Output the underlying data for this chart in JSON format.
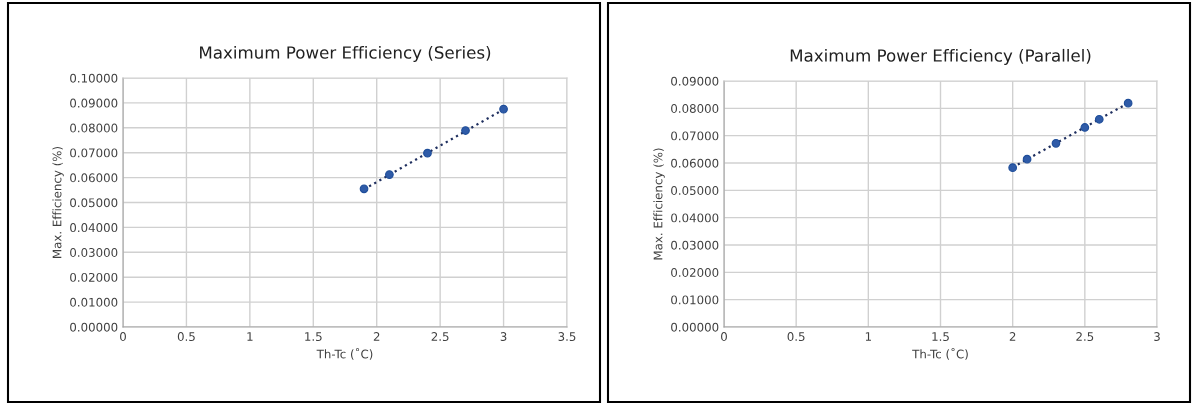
{
  "chart_data": [
    {
      "type": "scatter",
      "title": "Maximum Power Efficiency (Series)",
      "xlabel": "Th-Tc (˚C)",
      "ylabel": "Max. Efficiency (%)",
      "series": [
        {
          "color": "#2f5ba8",
          "x": [
            1.9,
            2.1,
            2.4,
            2.7,
            3.0
          ],
          "values": [
            0.0555,
            0.0612,
            0.0698,
            0.0789,
            0.0875
          ]
        },
        {
          "type": "line",
          "color": "#1f2f5f",
          "line_style": "dotted",
          "marker": "none",
          "x": [
            1.9,
            3.0
          ],
          "values": [
            0.0553,
            0.0874
          ]
        }
      ],
      "xlim": [
        0,
        3.5
      ],
      "xticks": [
        0,
        0.5,
        1,
        1.5,
        2,
        2.5,
        3,
        3.5
      ],
      "ylim": [
        0,
        0.1
      ],
      "yticks": [
        {
          "value": 0,
          "label": "0.00000"
        },
        {
          "value": 0.01,
          "label": "0.01000"
        },
        {
          "value": 0.02,
          "label": "0.02000"
        },
        {
          "value": 0.03,
          "label": "0.03000"
        },
        {
          "value": 0.04,
          "label": "0.04000"
        },
        {
          "value": 0.05,
          "label": "0.05000"
        },
        {
          "value": 0.06,
          "label": "0.06000"
        },
        {
          "value": 0.07,
          "label": "0.07000"
        },
        {
          "value": 0.08,
          "label": "0.08000"
        },
        {
          "value": 0.09,
          "label": "0.09000"
        },
        {
          "value": 0.1,
          "label": "0.10000"
        }
      ],
      "grid": true,
      "marker": "circle"
    },
    {
      "type": "scatter",
      "title": "Maximum Power Efficiency (Parallel)",
      "xlabel": "Th-Tc (˚C)",
      "ylabel": "Max. Efficiency (%)",
      "series": [
        {
          "color": "#2f5ba8",
          "x": [
            2.0,
            2.1,
            2.3,
            2.5,
            2.6,
            2.8
          ],
          "values": [
            0.0583,
            0.0614,
            0.0672,
            0.073,
            0.076,
            0.0819
          ]
        },
        {
          "type": "line",
          "color": "#1f2f5f",
          "line_style": "dotted",
          "marker": "none",
          "x": [
            2.0,
            2.8
          ],
          "values": [
            0.0584,
            0.0819
          ]
        }
      ],
      "xlim": [
        0,
        3
      ],
      "xticks": [
        0,
        0.5,
        1,
        1.5,
        2,
        2.5,
        3
      ],
      "ylim": [
        0,
        0.09
      ],
      "yticks": [
        {
          "value": 0,
          "label": "0.00000"
        },
        {
          "value": 0.01,
          "label": "0.01000"
        },
        {
          "value": 0.02,
          "label": "0.02000"
        },
        {
          "value": 0.03,
          "label": "0.03000"
        },
        {
          "value": 0.04,
          "label": "0.04000"
        },
        {
          "value": 0.05,
          "label": "0.05000"
        },
        {
          "value": 0.06,
          "label": "0.06000"
        },
        {
          "value": 0.07,
          "label": "0.07000"
        },
        {
          "value": 0.08,
          "label": "0.08000"
        },
        {
          "value": 0.09,
          "label": "0.09000"
        }
      ],
      "grid": true,
      "marker": "circle"
    }
  ]
}
